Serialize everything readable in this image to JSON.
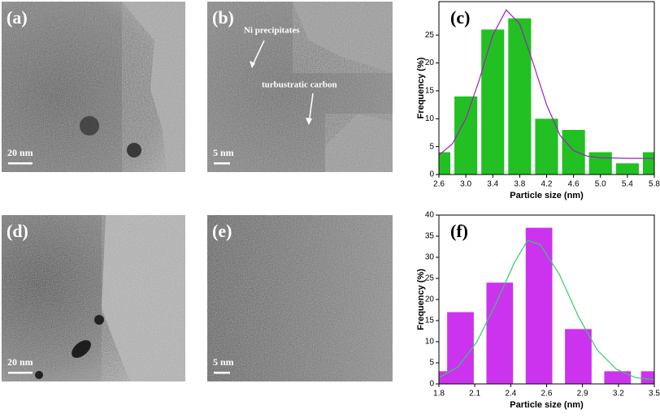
{
  "images": [
    {
      "label": "(a)",
      "scale_bar": "20 nm"
    },
    {
      "label": "(b)",
      "scale_bar": "5 nm",
      "annotations": [
        "Ni precipitates",
        "turbustratic carbon"
      ]
    },
    {
      "label": "(d)",
      "scale_bar": "20 nm"
    },
    {
      "label": "(e)",
      "scale_bar": "5 nm"
    }
  ],
  "chart_data": [
    {
      "type": "bar",
      "title": "(c)",
      "xlabel": "Particle size (nm)",
      "ylabel": "Frequency (%)",
      "x": [
        2.6,
        3.0,
        3.4,
        3.8,
        4.2,
        4.6,
        5.0,
        5.4,
        5.8
      ],
      "values": [
        4,
        14,
        26,
        28,
        10,
        8,
        4,
        2,
        4
      ],
      "color": "#22c022",
      "fit": {
        "x": [
          2.6,
          2.8,
          3.0,
          3.2,
          3.4,
          3.6,
          3.8,
          4.0,
          4.2,
          4.4,
          4.6,
          4.8,
          5.0,
          5.4,
          5.8
        ],
        "values": [
          3.5,
          5.5,
          10,
          17,
          25,
          29.5,
          27,
          20,
          12.5,
          7,
          4.3,
          3.3,
          3,
          2.9,
          2.9
        ],
        "color": "#a020c0"
      },
      "xlim": [
        2.6,
        5.8
      ],
      "xticks": [
        2.6,
        {
          "value": 3.0,
          "label": "3.0"
        },
        3.4,
        3.8,
        4.2,
        4.6,
        {
          "value": 5.0,
          "label": "5.0"
        },
        5.4,
        5.8
      ],
      "ylim": [
        0,
        31
      ],
      "yticks": [
        0,
        5,
        10,
        15,
        20,
        25
      ]
    },
    {
      "type": "bar",
      "title": "(f)",
      "xlabel": "Particle size (nm)",
      "ylabel": "Frequency (%)",
      "x": [
        1.8,
        1.97,
        2.28,
        2.59,
        2.9,
        3.21,
        3.5
      ],
      "values": [
        3,
        17,
        24,
        37,
        13,
        3,
        3
      ],
      "color": "#cc33ee",
      "fit": {
        "x": [
          1.8,
          1.95,
          2.1,
          2.25,
          2.4,
          2.5,
          2.6,
          2.75,
          2.9,
          3.05,
          3.2,
          3.35,
          3.5
        ],
        "values": [
          1.5,
          4,
          10,
          19,
          29,
          34,
          33,
          26,
          16,
          8,
          3.5,
          1.5,
          1
        ],
        "color": "#33cc66"
      },
      "xlim": [
        1.8,
        3.5
      ],
      "xticks": [
        1.8,
        {
          "value": 2.083,
          "label": "2.1"
        },
        {
          "value": 2.367,
          "label": "2.4"
        },
        {
          "value": 2.65,
          "label": "2.6"
        },
        {
          "value": 2.933,
          "label": "2.9"
        },
        {
          "value": 3.217,
          "label": "3.2"
        },
        3.5
      ],
      "ylim": [
        0,
        40
      ],
      "yticks": [
        0,
        5,
        10,
        15,
        20,
        25,
        30,
        35,
        40
      ]
    }
  ]
}
